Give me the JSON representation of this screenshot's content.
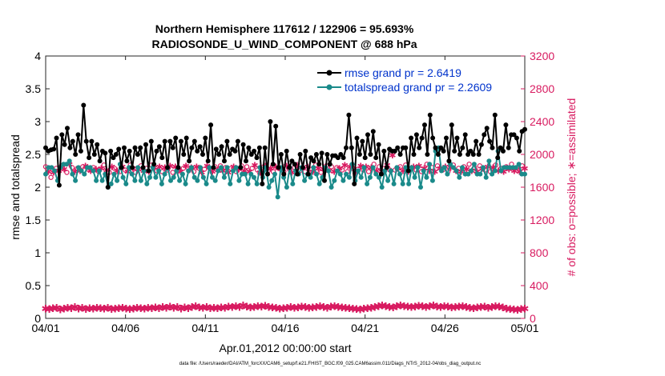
{
  "chart_data": {
    "type": "line",
    "title": "Northern Hemisphere 117612 / 122906 = 95.693%",
    "subtitle": "RADIOSONDE_U_WIND_COMPONENT @ 688 hPa",
    "xlabel": "Apr.01,2012 00:00:00 start",
    "ylabel_left": "rmse and totalspread",
    "ylabel_right": "# of obs: o=possible; ∗=assimilated",
    "footnote": "data file: /Users/raeder/DAI/ATM_forcXX/CAM6_setup/f.e21.FHIST_BGC.f09_025.CAM6assim.011/Diags_NTrS_2012-04/obs_diag_output.nc",
    "x_ticks": [
      "04/01",
      "04/06",
      "04/11",
      "04/16",
      "04/21",
      "04/26",
      "05/01"
    ],
    "x_tick_days": [
      0,
      5,
      10,
      15,
      20,
      25,
      30
    ],
    "xlim": [
      0,
      30
    ],
    "ylim_left": [
      0,
      4
    ],
    "ylim_right": [
      0,
      3200
    ],
    "y_ticks_left": [
      "0",
      "0.5",
      "1",
      "1.5",
      "2",
      "2.5",
      "3",
      "3.5",
      "4"
    ],
    "y_ticks_right": [
      "0",
      "400",
      "800",
      "1200",
      "1600",
      "2000",
      "2400",
      "2800",
      "3200"
    ],
    "colors": {
      "rmse": "#000000",
      "spread": "#1a8a8a",
      "obs": "#d81b60",
      "legend_text": "#0033cc"
    },
    "series": [
      {
        "name": "rmse grand pr = 2.6419",
        "axis": "left",
        "values": [
          2.6,
          2.55,
          2.57,
          2.58,
          2.75,
          2.03,
          2.8,
          2.65,
          2.9,
          2.6,
          2.7,
          2.5,
          2.8,
          2.55,
          3.25,
          2.7,
          2.45,
          2.7,
          2.5,
          2.65,
          2.4,
          2.55,
          2.52,
          2.0,
          2.55,
          2.45,
          2.5,
          2.58,
          2.3,
          2.6,
          2.4,
          2.55,
          2.3,
          2.6,
          2.5,
          2.6,
          2.3,
          2.65,
          2.25,
          2.7,
          2.35,
          2.55,
          2.62,
          2.45,
          2.7,
          2.3,
          2.7,
          2.6,
          2.75,
          2.3,
          2.7,
          2.5,
          2.75,
          2.4,
          2.6,
          2.7,
          2.55,
          2.62,
          2.5,
          2.75,
          2.4,
          2.95,
          2.3,
          2.58,
          2.5,
          2.62,
          2.4,
          2.7,
          2.5,
          2.58,
          2.55,
          2.7,
          2.3,
          2.65,
          2.4,
          2.6,
          2.5,
          2.55,
          2.45,
          2.6,
          2.05,
          2.6,
          2.2,
          3.0,
          2.35,
          2.93,
          2.3,
          2.5,
          2.2,
          2.55,
          2.3,
          2.4,
          2.35,
          2.2,
          2.5,
          2.3,
          2.55,
          2.2,
          2.45,
          2.4,
          2.5,
          2.35,
          2.52,
          2.1,
          2.5,
          2.35,
          2.48,
          2.48,
          2.45,
          2.5,
          2.45,
          2.6,
          3.1,
          2.6,
          2.05,
          2.75,
          2.5,
          2.7,
          2.45,
          2.8,
          2.5,
          2.85,
          2.45,
          2.65,
          2.2,
          2.55,
          2.3,
          2.58,
          2.55,
          2.55,
          2.6,
          2.5,
          2.6,
          2.6,
          2.25,
          2.75,
          2.5,
          2.8,
          2.6,
          2.75,
          2.95,
          2.5,
          3.1,
          2.75,
          2.6,
          2.5,
          2.6,
          2.55,
          2.75,
          2.4,
          2.95,
          2.55,
          2.75,
          2.5,
          2.6,
          2.8,
          2.5,
          2.55,
          2.5,
          2.7,
          2.5,
          2.65,
          2.8,
          2.9,
          2.7,
          2.6,
          3.1,
          2.45,
          2.6,
          2.55,
          2.95,
          2.6,
          2.8,
          2.8,
          2.75,
          2.55,
          2.85,
          2.88
        ]
      },
      {
        "name": "totalspread grand pr = 2.2609",
        "axis": "left",
        "values": [
          2.2,
          2.3,
          2.3,
          2.25,
          2.1,
          2.3,
          2.35,
          2.35,
          2.4,
          2.2,
          2.1,
          2.3,
          2.25,
          2.2,
          2.3,
          2.3,
          2.25,
          2.1,
          2.25,
          2.1,
          2.2,
          2.0,
          2.05,
          2.2,
          2.1,
          2.35,
          2.15,
          2.05,
          2.3,
          2.2,
          2.1,
          2.3,
          2.1,
          2.25,
          2.05,
          2.15,
          2.3,
          2.15,
          2.25,
          2.05,
          2.2,
          2.3,
          2.1,
          2.15,
          2.25,
          2.1,
          2.2,
          2.05,
          2.25,
          2.3,
          2.15,
          2.1,
          2.3,
          2.15,
          2.05,
          2.3,
          2.15,
          2.1,
          2.25,
          2.3,
          2.15,
          2.3,
          2.05,
          2.25,
          2.3,
          2.1,
          2.2,
          2.2,
          2.05,
          2.2,
          2.15,
          2.05,
          2.3,
          2.15,
          2.3,
          2.0,
          2.1,
          2.2,
          1.85,
          2.3,
          2.15,
          2.0,
          2.3,
          2.05,
          2.25,
          2.2,
          2.3,
          2.1,
          2.2,
          2.15,
          2.3,
          2.2,
          2.05,
          2.15,
          2.3,
          2.25,
          2.0,
          2.1,
          2.25,
          2.2,
          2.1,
          2.2,
          2.15,
          2.35,
          2.1,
          2.25,
          2.15,
          2.3,
          2.05,
          2.15,
          2.3,
          2.2,
          2.15,
          2.0,
          2.25,
          2.1,
          2.25,
          2.05,
          2.3,
          2.2,
          2.05,
          2.3,
          2.05,
          2.3,
          2.15,
          2.3,
          2.0,
          2.25,
          2.15,
          2.35,
          2.1,
          2.55,
          2.6,
          2.25,
          2.3,
          2.2,
          2.35,
          2.3,
          2.25,
          2.15,
          2.3,
          2.2,
          2.2,
          2.25,
          2.35,
          2.2,
          2.2,
          2.3,
          2.15,
          2.4,
          2.2,
          2.25,
          2.55,
          2.25,
          2.3,
          2.3,
          2.3,
          2.3,
          2.3,
          2.35,
          2.2,
          2.2
        ]
      },
      {
        "name": "possible",
        "axis": "right",
        "values": [
          120,
          115,
          125,
          130,
          110,
          120,
          130,
          125,
          140,
          120,
          130,
          115,
          125,
          120,
          130,
          125,
          120,
          130,
          115,
          120,
          125,
          130,
          120,
          115,
          120,
          130,
          125,
          120,
          130,
          125,
          135,
          125,
          140,
          130,
          145,
          130,
          140,
          120,
          135,
          125,
          140,
          150,
          135,
          130,
          140,
          125,
          130,
          125,
          135,
          130,
          145,
          140,
          150,
          140,
          160,
          145,
          135,
          140,
          150,
          145,
          155,
          140,
          135,
          130,
          120,
          125,
          130,
          140,
          130,
          135,
          145,
          140,
          130,
          135,
          140,
          150,
          140,
          130,
          145,
          150,
          140,
          135,
          130,
          125,
          120,
          115,
          110,
          120,
          125,
          130,
          140,
          150,
          160,
          150,
          140,
          135,
          150,
          160,
          150,
          145,
          140,
          145,
          155,
          150,
          140,
          150,
          160,
          145,
          140,
          150,
          145,
          135,
          140,
          145,
          150,
          140,
          130,
          125,
          135,
          140,
          145,
          130,
          140,
          150,
          145,
          135,
          120,
          115,
          110,
          105,
          115,
          120
        ]
      }
    ],
    "obs_possible_right": [
      1850,
      1790,
      1720,
      1780,
      1830,
      1800,
      1860,
      1820,
      1780,
      1880,
      1840,
      1790,
      1830,
      1800,
      1850,
      1860,
      1820,
      1800,
      1840,
      1820,
      1790,
      1830,
      1870,
      1810,
      1780,
      1850,
      1830,
      1800,
      1790,
      1850,
      1810,
      1790,
      1870,
      1830,
      1780,
      1820,
      1860,
      1800,
      1830,
      1790,
      1870,
      1840,
      1800,
      1850,
      1790,
      1840,
      1810,
      1860,
      1780,
      1850,
      1820,
      1790,
      1830,
      1860,
      1800,
      1840,
      1790,
      1850,
      1830,
      1780,
      1820,
      1860,
      1830,
      1790,
      1850,
      1810,
      1860,
      1800,
      1840,
      1780,
      1830,
      1850,
      1790,
      1820,
      1860,
      1800,
      1850,
      1790,
      1830,
      1870,
      1810,
      1780,
      1840,
      1860,
      1800,
      1830,
      1790,
      1850,
      1830,
      1820,
      1790,
      1860,
      1820,
      1780,
      1840,
      1870,
      1800,
      1830,
      1790,
      1850,
      1820,
      1790,
      1870,
      1830,
      1780,
      1820,
      1860,
      1800,
      1850,
      1790,
      1840,
      1830,
      1810,
      1870,
      1790,
      1850,
      1830,
      1780,
      1820,
      1860,
      1810,
      1850,
      1790,
      1840,
      1880,
      1800,
      1850,
      1790,
      1830,
      1870,
      1810,
      1990,
      1810,
      1830,
      1850,
      1800,
      1870,
      1790,
      1830,
      1850,
      1810,
      1860,
      1790,
      1830,
      1880,
      1800,
      1840,
      1790,
      1860,
      1830,
      1810,
      1850,
      1790,
      1840,
      1870,
      1800,
      1830,
      1790,
      1850,
      1820,
      1880,
      1800,
      1840,
      1790,
      1860,
      1830,
      1810,
      1850,
      1790,
      1840,
      1870,
      1800,
      1830,
      1790,
      1850,
      1820,
      1880,
      1800,
      1840,
      1790,
      1860,
      1830
    ]
  }
}
